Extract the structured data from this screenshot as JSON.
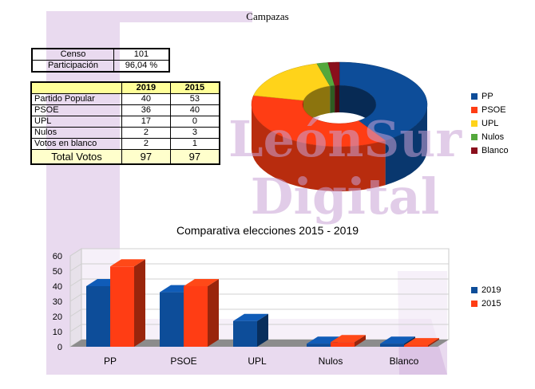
{
  "header": {
    "title": "Campazas"
  },
  "censo": {
    "rows": [
      {
        "label": "Censo",
        "value": "101"
      },
      {
        "label": "Participación",
        "value": "96,04 %"
      }
    ]
  },
  "results": {
    "head": [
      "",
      "2019",
      "2015"
    ],
    "rows": [
      {
        "label": "Partido Popular",
        "v2019": "40",
        "v2015": "53"
      },
      {
        "label": "PSOE",
        "v2019": "36",
        "v2015": "40"
      },
      {
        "label": "UPL",
        "v2019": "17",
        "v2015": "0"
      },
      {
        "label": "Nulos",
        "v2019": "2",
        "v2015": "3"
      },
      {
        "label": "Votos en blanco",
        "v2019": "2",
        "v2015": "1"
      }
    ],
    "total": {
      "label": "Total Votos",
      "v2019": "97",
      "v2015": "97"
    }
  },
  "watermark": {
    "line1": "LeónSur",
    "line2": "Digital",
    "color": "#c9a3d6"
  },
  "chart_data": [
    {
      "type": "pie",
      "title": "",
      "style": "3d-donut",
      "categories": [
        "PP",
        "PSOE",
        "UPL",
        "Nulos",
        "Blanco"
      ],
      "values": [
        40,
        36,
        17,
        2,
        2
      ],
      "colors": [
        "#0d4d99",
        "#ff3d14",
        "#ffd31a",
        "#54a83c",
        "#8a0f1c"
      ],
      "legend": "right"
    },
    {
      "type": "bar",
      "title": "Comparativa elecciones 2015 - 2019",
      "style": "3d",
      "categories": [
        "PP",
        "PSOE",
        "UPL",
        "Nulos",
        "Blanco"
      ],
      "series": [
        {
          "name": "2019",
          "values": [
            40,
            36,
            17,
            2,
            2
          ],
          "color": "#0d4d99"
        },
        {
          "name": "2015",
          "values": [
            53,
            40,
            0,
            3,
            1
          ],
          "color": "#ff3d14"
        }
      ],
      "yticks": [
        "0",
        "10",
        "20",
        "30",
        "40",
        "50",
        "60"
      ],
      "ylim": [
        0,
        60
      ],
      "xlabel": "",
      "ylabel": "",
      "grid": true,
      "legend": "right"
    }
  ]
}
